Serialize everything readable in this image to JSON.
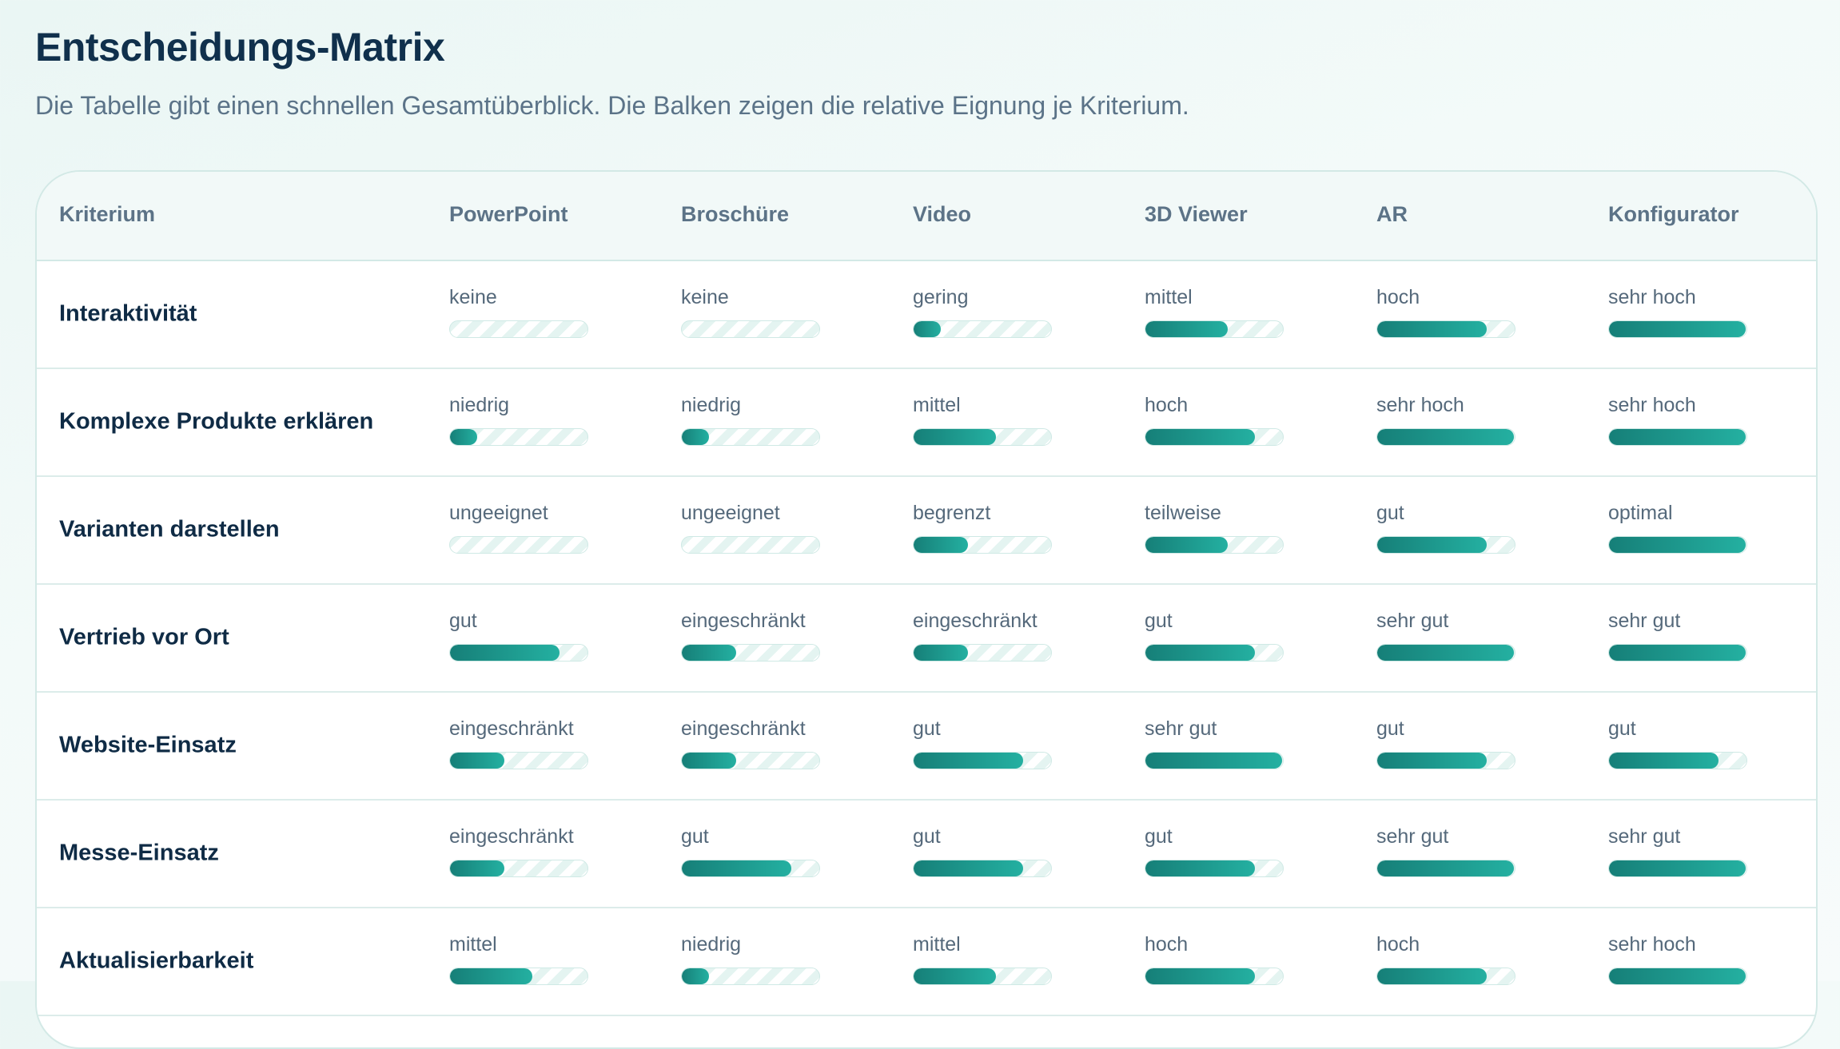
{
  "header": {
    "title": "Entscheidungs-Matrix",
    "subtitle": "Die Tabelle gibt einen schnellen Gesamtüberblick. Die Balken zeigen die relative Eignung je Kriterium."
  },
  "table": {
    "columns": [
      "Kriterium",
      "PowerPoint",
      "Broschüre",
      "Video",
      "3D Viewer",
      "AR",
      "Konfigurator"
    ],
    "rows": [
      {
        "criterion": "Interaktivität",
        "cells": [
          {
            "label": "keine",
            "level": 0
          },
          {
            "label": "keine",
            "level": 0
          },
          {
            "label": "gering",
            "level": 0.2
          },
          {
            "label": "mittel",
            "level": 0.6
          },
          {
            "label": "hoch",
            "level": 0.8
          },
          {
            "label": "sehr hoch",
            "level": 1.0
          }
        ]
      },
      {
        "criterion": "Komplexe Produkte erklären",
        "cells": [
          {
            "label": "niedrig",
            "level": 0.2
          },
          {
            "label": "niedrig",
            "level": 0.2
          },
          {
            "label": "mittel",
            "level": 0.6
          },
          {
            "label": "hoch",
            "level": 0.8
          },
          {
            "label": "sehr hoch",
            "level": 1.0
          },
          {
            "label": "sehr hoch",
            "level": 1.0
          }
        ]
      },
      {
        "criterion": "Varianten darstellen",
        "cells": [
          {
            "label": "ungeeignet",
            "level": 0
          },
          {
            "label": "ungeeignet",
            "level": 0
          },
          {
            "label": "begrenzt",
            "level": 0.4
          },
          {
            "label": "teilweise",
            "level": 0.6
          },
          {
            "label": "gut",
            "level": 0.8
          },
          {
            "label": "optimal",
            "level": 1.0
          }
        ]
      },
      {
        "criterion": "Vertrieb vor Ort",
        "cells": [
          {
            "label": "gut",
            "level": 0.8
          },
          {
            "label": "eingeschränkt",
            "level": 0.4
          },
          {
            "label": "eingeschränkt",
            "level": 0.4
          },
          {
            "label": "gut",
            "level": 0.8
          },
          {
            "label": "sehr gut",
            "level": 1.0
          },
          {
            "label": "sehr gut",
            "level": 1.0
          }
        ]
      },
      {
        "criterion": "Website-Einsatz",
        "cells": [
          {
            "label": "eingeschränkt",
            "level": 0.4
          },
          {
            "label": "eingeschränkt",
            "level": 0.4
          },
          {
            "label": "gut",
            "level": 0.8
          },
          {
            "label": "sehr gut",
            "level": 1.0
          },
          {
            "label": "gut",
            "level": 0.8
          },
          {
            "label": "gut",
            "level": 0.8
          }
        ]
      },
      {
        "criterion": "Messe-Einsatz",
        "cells": [
          {
            "label": "eingeschränkt",
            "level": 0.4
          },
          {
            "label": "gut",
            "level": 0.8
          },
          {
            "label": "gut",
            "level": 0.8
          },
          {
            "label": "gut",
            "level": 0.8
          },
          {
            "label": "sehr gut",
            "level": 1.0
          },
          {
            "label": "sehr gut",
            "level": 1.0
          }
        ]
      },
      {
        "criterion": "Aktualisierbarkeit",
        "cells": [
          {
            "label": "mittel",
            "level": 0.6
          },
          {
            "label": "niedrig",
            "level": 0.2
          },
          {
            "label": "mittel",
            "level": 0.6
          },
          {
            "label": "hoch",
            "level": 0.8
          },
          {
            "label": "hoch",
            "level": 0.8
          },
          {
            "label": "sehr hoch",
            "level": 1.0
          }
        ]
      }
    ]
  },
  "colors": {
    "bar_fill_start": "#167f78",
    "bar_fill_end": "#24b0a1",
    "title": "#10304c",
    "border": "#d3e9e6"
  }
}
